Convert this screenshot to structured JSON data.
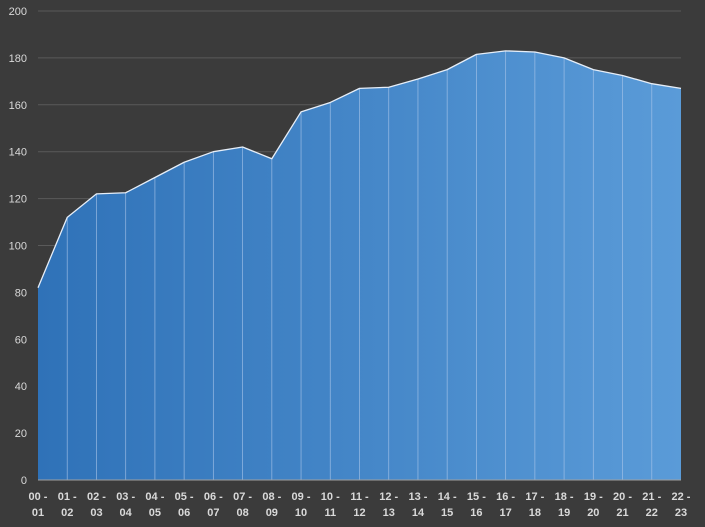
{
  "chart_data": {
    "type": "area",
    "title": "",
    "xlabel": "",
    "ylabel": "",
    "ylim": [
      0,
      200
    ],
    "ytick_step": 20,
    "grid": true,
    "legend": "none",
    "gradient_colors": [
      "#2f72b8",
      "#5a9bd8"
    ],
    "categories": [
      [
        "00 -",
        "01"
      ],
      [
        "01 -",
        "02"
      ],
      [
        "02 -",
        "03"
      ],
      [
        "03 -",
        "04"
      ],
      [
        "04 -",
        "05"
      ],
      [
        "05 -",
        "06"
      ],
      [
        "06 -",
        "07"
      ],
      [
        "07 -",
        "08"
      ],
      [
        "08 -",
        "09"
      ],
      [
        "09 -",
        "10"
      ],
      [
        "10 -",
        "11"
      ],
      [
        "11 -",
        "12"
      ],
      [
        "12 -",
        "13"
      ],
      [
        "13 -",
        "14"
      ],
      [
        "14 -",
        "15"
      ],
      [
        "15 -",
        "16"
      ],
      [
        "16 -",
        "17"
      ],
      [
        "17 -",
        "18"
      ],
      [
        "18 -",
        "19"
      ],
      [
        "19 -",
        "20"
      ],
      [
        "20 -",
        "21"
      ],
      [
        "21 -",
        "22"
      ],
      [
        "22 -",
        "23"
      ]
    ],
    "values": [
      82,
      112,
      122,
      122.5,
      129,
      135.5,
      140,
      142,
      137,
      157,
      161,
      167,
      167.5,
      171,
      175,
      181.5,
      183,
      182.5,
      180,
      175,
      172.5,
      169,
      167
    ]
  }
}
